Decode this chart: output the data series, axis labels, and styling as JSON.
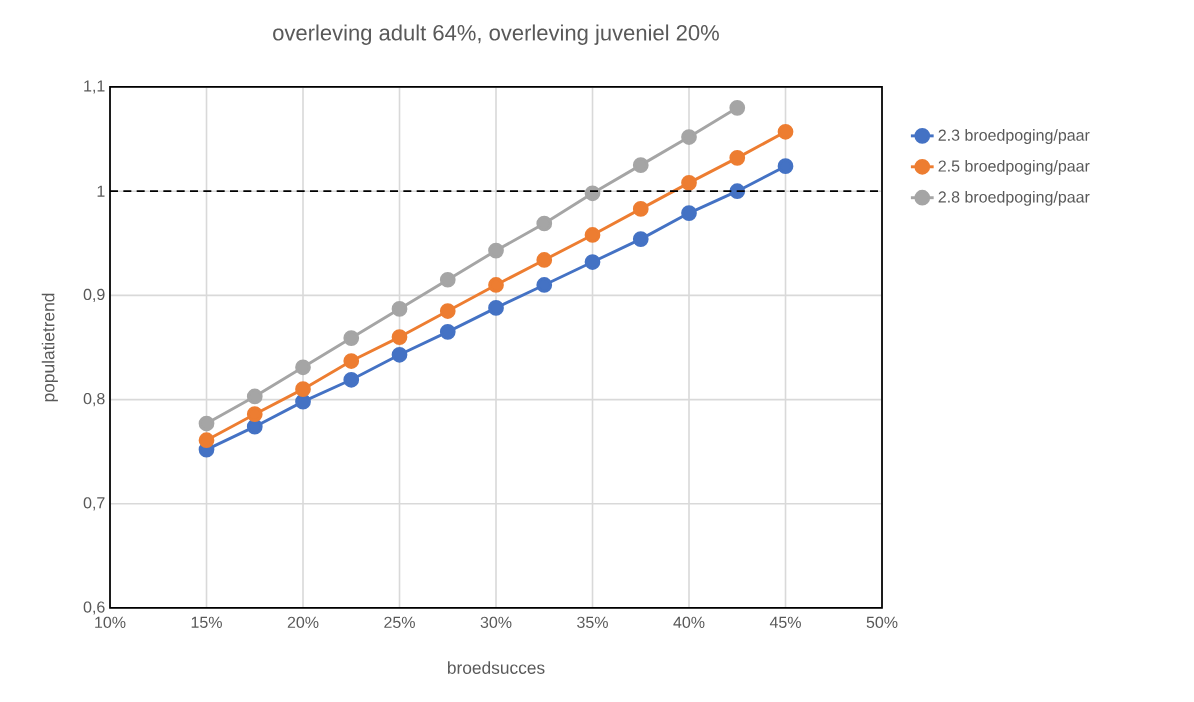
{
  "chart_data": {
    "type": "line",
    "title": "overleving adult 64%, overleving juveniel 20%",
    "xlabel": "broedsucces",
    "ylabel": "populatietrend",
    "x": [
      15,
      17.5,
      20,
      22.5,
      25,
      27.5,
      30,
      32.5,
      35,
      37.5,
      40,
      42.5,
      45
    ],
    "series": [
      {
        "name": "2.3 broedpoging/paar",
        "color": "#4472c4",
        "values": [
          0.752,
          0.774,
          0.798,
          0.819,
          0.843,
          0.865,
          0.888,
          0.91,
          0.932,
          0.954,
          0.979,
          1.0,
          1.024
        ]
      },
      {
        "name": "2.5 broedpoging/paar",
        "color": "#ed7d31",
        "values": [
          0.761,
          0.786,
          0.81,
          0.837,
          0.86,
          0.885,
          0.91,
          0.934,
          0.958,
          0.983,
          1.008,
          1.032,
          1.057
        ]
      },
      {
        "name": "2.8 broedpoging/paar",
        "color": "#a5a5a5",
        "values": [
          0.777,
          0.803,
          0.831,
          0.859,
          0.887,
          0.915,
          0.943,
          0.969,
          0.998,
          1.025,
          1.052,
          1.08,
          null
        ]
      }
    ],
    "xlim": [
      10,
      50
    ],
    "xticks": [
      {
        "value": 10,
        "label": "10%"
      },
      {
        "value": 15,
        "label": "15%"
      },
      {
        "value": 20,
        "label": "20%"
      },
      {
        "value": 25,
        "label": "25%"
      },
      {
        "value": 30,
        "label": "30%"
      },
      {
        "value": 35,
        "label": "35%"
      },
      {
        "value": 40,
        "label": "40%"
      },
      {
        "value": 45,
        "label": "45%"
      },
      {
        "value": 50,
        "label": "50%"
      }
    ],
    "ylim": [
      0.6,
      1.1
    ],
    "yticks": [
      {
        "value": 0.6,
        "label": "0,6"
      },
      {
        "value": 0.7,
        "label": "0,7"
      },
      {
        "value": 0.8,
        "label": "0,8"
      },
      {
        "value": 0.9,
        "label": "0,9"
      },
      {
        "value": 1,
        "label": "1"
      },
      {
        "value": 1.1,
        "label": "1,1"
      }
    ],
    "ref_lines": [
      {
        "axis": "y",
        "value": 1,
        "color": "#000000",
        "line_style": "dashed"
      }
    ],
    "grid": true,
    "legend": "right",
    "marker": "circle",
    "line_style": "solid"
  }
}
